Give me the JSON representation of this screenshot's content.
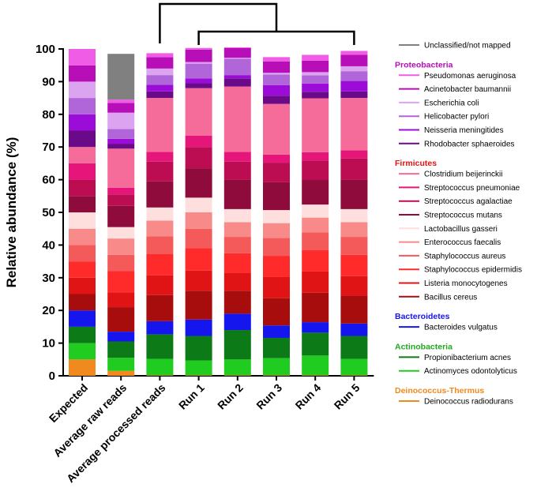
{
  "chart_data": {
    "type": "stacked-bar",
    "ylabel": "Relative abundance (%)",
    "ylim": [
      0,
      100
    ],
    "yticks": [
      0,
      10,
      20,
      30,
      40,
      50,
      60,
      70,
      80,
      90,
      100
    ],
    "categories": [
      "Expected",
      "Average raw reads",
      "Average processed reads",
      "Run 1",
      "Run 2",
      "Run 3",
      "Run 4",
      "Run 5"
    ],
    "series": [
      {
        "name": "Deinococcus radiodurans",
        "color": "#f08a1e",
        "values": [
          5,
          1.5,
          0.2,
          0.2,
          0.2,
          0.2,
          0.2,
          0.2
        ]
      },
      {
        "name": "Actinomyces odontolyticus",
        "color": "#1fcc1f",
        "values": [
          5,
          4,
          5,
          4.5,
          4.8,
          5.2,
          6,
          5
        ]
      },
      {
        "name": "Propionibacterium acnes",
        "color": "#0d7a18",
        "values": [
          5,
          5,
          7.5,
          7.5,
          9,
          6.2,
          7,
          7
        ]
      },
      {
        "name": "Bacteroides vulgatus",
        "color": "#1515ee",
        "values": [
          5,
          3,
          4,
          5,
          5,
          3.8,
          3.2,
          3.8
        ]
      },
      {
        "name": "Bacillus cereus",
        "color": "#a80d0d",
        "values": [
          5,
          7.5,
          8,
          8.8,
          7,
          8.3,
          9,
          8.5
        ]
      },
      {
        "name": "Listeria monocytogenes",
        "color": "#e01414",
        "values": [
          5,
          4.5,
          6,
          6.2,
          5.5,
          6.5,
          6.5,
          6
        ]
      },
      {
        "name": "Staphylococcus epidermidis",
        "color": "#ff2a2a",
        "values": [
          5,
          6.5,
          6.5,
          6.8,
          6,
          6.5,
          6.5,
          6.5
        ]
      },
      {
        "name": "Staphylococcus aureus",
        "color": "#f55a5a",
        "values": [
          5,
          5,
          5.5,
          6,
          5,
          5.5,
          5.5,
          5.5
        ]
      },
      {
        "name": "Enterococcus faecalis",
        "color": "#f88a8a",
        "values": [
          5,
          5,
          4.8,
          5,
          4.5,
          4.5,
          4.5,
          4.5
        ]
      },
      {
        "name": "Lactobacillus gasseri",
        "color": "#ffdede",
        "values": [
          5,
          3.5,
          4,
          4.5,
          4,
          4,
          4,
          4
        ]
      },
      {
        "name": "Streptococcus mutans",
        "color": "#8e0b3c",
        "values": [
          5,
          6.5,
          8,
          9,
          9,
          8.5,
          7.5,
          9
        ]
      },
      {
        "name": "Streptococcus agalactiae",
        "color": "#bd0d52",
        "values": [
          5,
          3.5,
          6,
          6.5,
          5.5,
          6,
          6,
          6.5
        ]
      },
      {
        "name": "Streptococcus pneumoniae",
        "color": "#e6157a",
        "values": [
          5,
          2,
          3,
          3.5,
          3,
          2.5,
          2.5,
          2.5
        ]
      },
      {
        "name": "Clostridium beijerinckii",
        "color": "#f56c9a",
        "values": [
          5,
          12,
          16.5,
          14.5,
          20,
          15.5,
          16.5,
          16
        ]
      },
      {
        "name": "Rhodobacter sphaeroides",
        "color": "#6a0a88",
        "values": [
          5,
          1.5,
          2,
          1.5,
          2.5,
          2.5,
          2,
          2
        ]
      },
      {
        "name": "Neisseria meningitides",
        "color": "#9c0cd8",
        "values": [
          5,
          1.5,
          2,
          1.5,
          1,
          3.2,
          2.5,
          3.2
        ]
      },
      {
        "name": "Helicobacter pylori",
        "color": "#b066d8",
        "values": [
          5,
          3,
          3,
          4.5,
          5,
          3.3,
          2.5,
          3
        ]
      },
      {
        "name": "Escherichia coli",
        "color": "#dca4f0",
        "values": [
          5,
          5,
          2,
          0.5,
          0.3,
          0.5,
          1,
          1.5
        ]
      },
      {
        "name": "Acinetobacter baumannii",
        "color": "#b80eb8",
        "values": [
          5,
          3,
          3.5,
          3.8,
          3,
          3.5,
          3.5,
          3.5
        ]
      },
      {
        "name": "Pseudomonas aeruginosa",
        "color": "#f05ce6",
        "values": [
          5,
          1,
          1.2,
          0.5,
          0.2,
          1.3,
          1.8,
          1.2
        ]
      },
      {
        "name": "Unclassified/not mapped",
        "color": "#808080",
        "values": [
          0,
          14,
          0,
          0,
          0,
          0,
          0,
          0
        ]
      }
    ],
    "legend": [
      {
        "kind": "item",
        "label": "Unclassified/not mapped",
        "color": "#808080"
      },
      {
        "kind": "group",
        "label": "Proteobacteria",
        "color": "#b80eb8"
      },
      {
        "kind": "item",
        "label": "Pseudomonas aeruginosa",
        "color": "#f05ce6"
      },
      {
        "kind": "item",
        "label": "Acinetobacter baumannii",
        "color": "#b80eb8"
      },
      {
        "kind": "item",
        "label": "Escherichia coli",
        "color": "#dca4f0"
      },
      {
        "kind": "item",
        "label": "Helicobacter pylori",
        "color": "#b066d8"
      },
      {
        "kind": "item",
        "label": "Neisseria meningitides",
        "color": "#9c0cd8"
      },
      {
        "kind": "item",
        "label": "Rhodobacter sphaeroides",
        "color": "#6a0a88"
      },
      {
        "kind": "group",
        "label": "Firmicutes",
        "color": "#e01414"
      },
      {
        "kind": "item",
        "label": "Clostridium beijerinckii",
        "color": "#f56c9a"
      },
      {
        "kind": "item",
        "label": "Streptococcus pneumoniae",
        "color": "#e6157a"
      },
      {
        "kind": "item",
        "label": "Streptococcus agalactiae",
        "color": "#bd0d52"
      },
      {
        "kind": "item",
        "label": "Streptococcus mutans",
        "color": "#8e0b3c"
      },
      {
        "kind": "item",
        "label": "Lactobacillus gasseri",
        "color": "#ffdede"
      },
      {
        "kind": "item",
        "label": "Enterococcus faecalis",
        "color": "#f88a8a"
      },
      {
        "kind": "item",
        "label": "Staphylococcus aureus",
        "color": "#f55a5a"
      },
      {
        "kind": "item",
        "label": "Staphylococcus epidermidis",
        "color": "#ff2a2a"
      },
      {
        "kind": "item",
        "label": "Listeria monocytogenes",
        "color": "#e01414"
      },
      {
        "kind": "item",
        "label": "Bacillus cereus",
        "color": "#a80d0d"
      },
      {
        "kind": "group",
        "label": "Bacteroidetes",
        "color": "#1515ee"
      },
      {
        "kind": "item",
        "label": "Bacteroides vulgatus",
        "color": "#1515ee"
      },
      {
        "kind": "group",
        "label": "Actinobacteria",
        "color": "#1fa81f"
      },
      {
        "kind": "item",
        "label": "Propionibacterium acnes",
        "color": "#0d7a18"
      },
      {
        "kind": "item",
        "label": "Actinomyces odontolyticus",
        "color": "#1fcc1f"
      },
      {
        "kind": "group",
        "label": "Deinococcus-Thermus",
        "color": "#f08a1e"
      },
      {
        "kind": "item",
        "label": "Deinococcus radiodurans",
        "color": "#f08a1e"
      }
    ],
    "comparison_brackets": [
      {
        "from": "Average processed reads",
        "to_group": [
          "Run 1",
          "Run 2",
          "Run 3",
          "Run 4",
          "Run 5"
        ]
      }
    ]
  }
}
